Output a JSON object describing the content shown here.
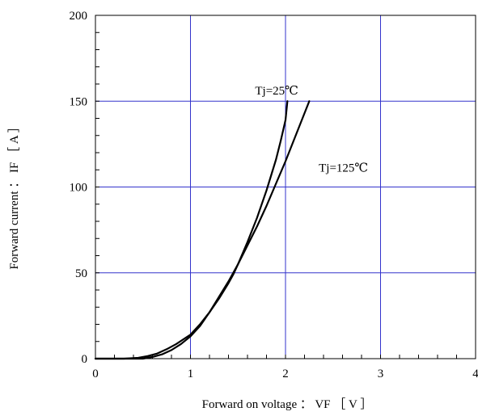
{
  "chart_data": {
    "type": "line",
    "title": "",
    "xlabel": "Forward on voltage ： VF ［ V ］",
    "ylabel": "Forward current ： IF ［ A ］",
    "xlim": [
      0,
      4
    ],
    "ylim": [
      0,
      200
    ],
    "x_ticks": [
      "0",
      "1",
      "2",
      "3",
      "4"
    ],
    "y_ticks": [
      "0",
      "50",
      "100",
      "150",
      "200"
    ],
    "grid": true,
    "colors": {
      "grid": "#3333cc",
      "axes": "#000000",
      "series": "#000000"
    },
    "series": [
      {
        "name": "Tj=25℃",
        "x": [
          0,
          0.3,
          0.45,
          0.55,
          0.65,
          0.75,
          0.85,
          1.0,
          1.1,
          1.2,
          1.3,
          1.4,
          1.45,
          1.5,
          1.6,
          1.7,
          1.8,
          1.9,
          1.95,
          2.0,
          2.02
        ],
        "y": [
          0,
          0,
          0.5,
          1.5,
          3,
          5.5,
          8.5,
          14,
          20,
          27,
          35,
          44,
          49,
          55,
          68,
          82,
          98,
          116,
          127,
          139,
          150
        ]
      },
      {
        "name": "Tj=125℃",
        "x": [
          0,
          0.5,
          0.6,
          0.7,
          0.8,
          0.9,
          1.0,
          1.1,
          1.2,
          1.3,
          1.4,
          1.45,
          1.5,
          1.6,
          1.7,
          1.8,
          1.9,
          2.0,
          2.1,
          2.2,
          2.25
        ],
        "y": [
          0,
          0,
          1,
          2.5,
          5,
          8.5,
          13,
          19,
          27,
          36,
          45,
          50,
          55,
          66,
          77,
          89,
          102,
          115,
          129,
          143,
          150
        ]
      }
    ],
    "annotations": [
      {
        "text": "Tj=25℃",
        "x": 1.68,
        "y": 154
      },
      {
        "text": "Tj=125℃",
        "x": 2.35,
        "y": 109
      }
    ]
  }
}
